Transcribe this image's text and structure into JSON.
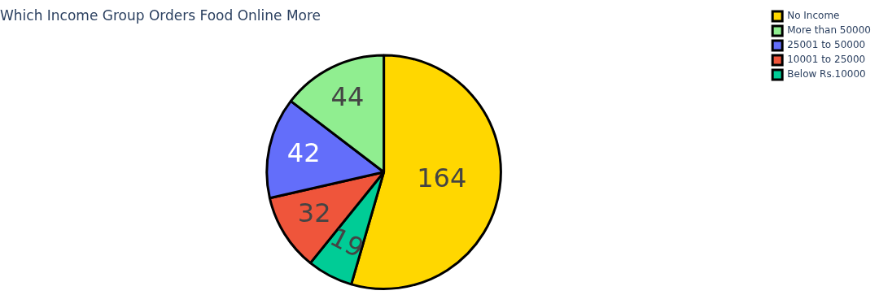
{
  "chart_data": {
    "type": "pie",
    "title": "Which Income Group Orders Food Online More",
    "categories": [
      "No Income",
      "Below Rs.10000",
      "10001 to 25000",
      "25001 to 50000",
      "More than 50000"
    ],
    "values": [
      164,
      19,
      32,
      42,
      44
    ],
    "colors": [
      "#ffd700",
      "#00cc96",
      "#ef553b",
      "#636efa",
      "#90ee90"
    ],
    "data_labels": true,
    "legend": "top right"
  }
}
